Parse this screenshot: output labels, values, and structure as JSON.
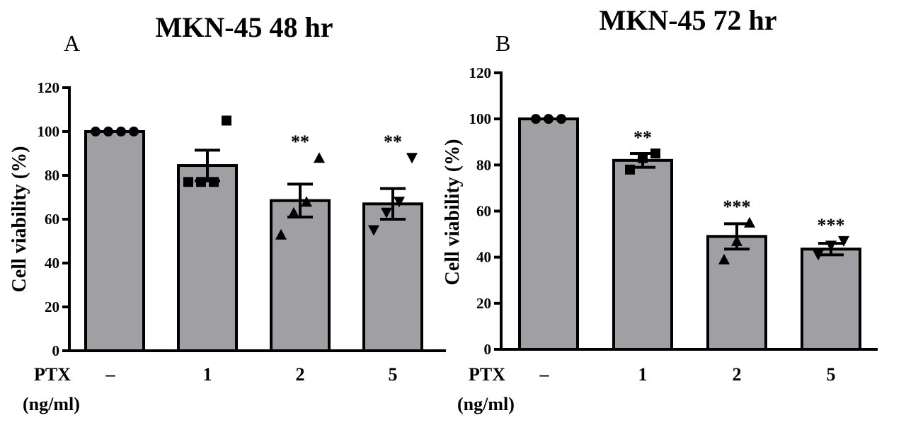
{
  "chart_data": [
    {
      "type": "bar",
      "panel_label": "A",
      "title": "MKN-45 48 hr",
      "ylabel": "Cell viability (%)",
      "x_name_line1": "PTX",
      "x_name_line2": "(ng/ml)",
      "categories": [
        "–",
        "1",
        "2",
        "5"
      ],
      "values": [
        100,
        84.5,
        68.5,
        67
      ],
      "sem": [
        0,
        7,
        7.5,
        7
      ],
      "points": [
        [
          100,
          100,
          100,
          100
        ],
        [
          77,
          77,
          77,
          105
        ],
        [
          53,
          63,
          68,
          88
        ],
        [
          55,
          63,
          68,
          88
        ]
      ],
      "markers": [
        "circle",
        "square",
        "triangle-up",
        "triangle-down"
      ],
      "significance": [
        "",
        "",
        "**",
        "**"
      ],
      "ylim": [
        0,
        120
      ],
      "yticks": [
        0,
        20,
        40,
        60,
        80,
        100,
        120
      ],
      "bar_color": "#a0a0a4",
      "grid": false
    },
    {
      "type": "bar",
      "panel_label": "B",
      "title": "MKN-45 72 hr",
      "ylabel": "Cell viability (%)",
      "x_name_line1": "PTX",
      "x_name_line2": "(ng/ml)",
      "categories": [
        "–",
        "1",
        "2",
        "5"
      ],
      "values": [
        100,
        82,
        49,
        43.5
      ],
      "sem": [
        0,
        3,
        5.5,
        2.5
      ],
      "points": [
        [
          100,
          100,
          100
        ],
        [
          78,
          83,
          85
        ],
        [
          39,
          47,
          55
        ],
        [
          41,
          45,
          47
        ]
      ],
      "markers": [
        "circle",
        "square",
        "triangle-up",
        "triangle-down"
      ],
      "significance": [
        "",
        "**",
        "***",
        "***"
      ],
      "ylim": [
        0,
        120
      ],
      "yticks": [
        0,
        20,
        40,
        60,
        80,
        100,
        120
      ],
      "bar_color": "#a0a0a4",
      "grid": false
    }
  ]
}
